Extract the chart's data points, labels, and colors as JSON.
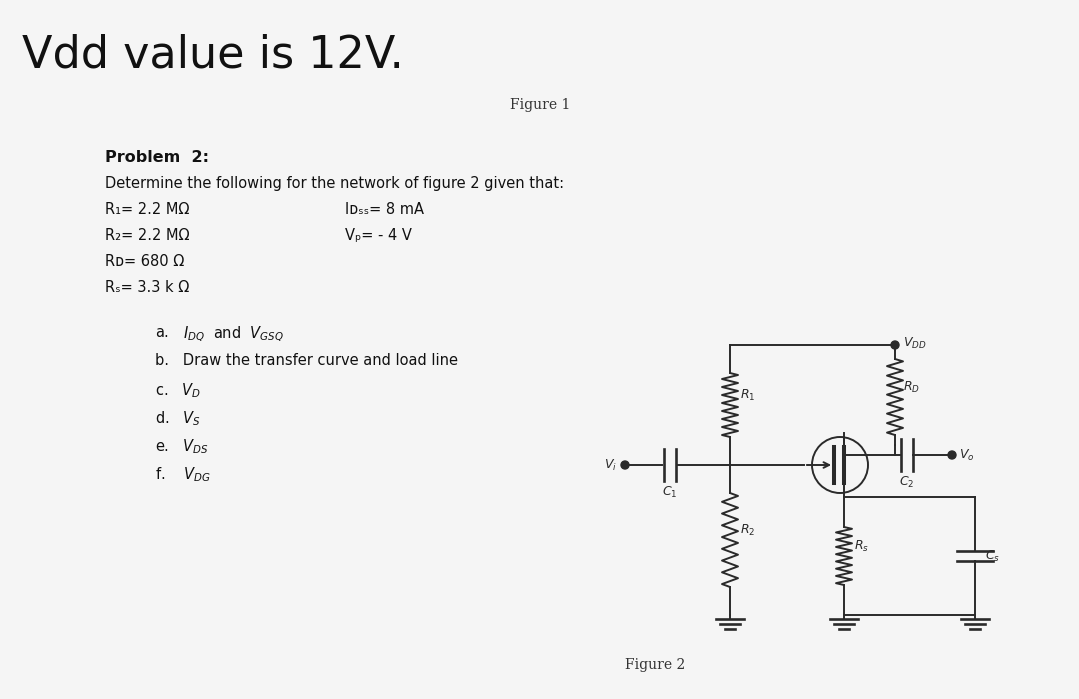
{
  "title_text": "Vdd value is 12V.",
  "figure1_label": "Figure 1",
  "problem_header": "Problem  2:",
  "problem_desc": "Determine the following for the network of figure 2 given that:",
  "param_R1": "R₁= 2.2 MΩ",
  "param_R2": "R₂= 2.2 MΩ",
  "param_RD": "Rᴅ= 680 Ω",
  "param_RS": "Rₛ= 3.3 k Ω",
  "param_IDSS": "Iᴅₛₛ= 8 mA",
  "param_VP": "Vₚ= - 4 V",
  "figure2_label": "Figure 2",
  "bg_color": "#f5f5f5",
  "text_color": "#111111",
  "circuit_color": "#2a2a2a",
  "title_fontsize": 32,
  "body_fontsize": 11,
  "label_fontsize": 9
}
